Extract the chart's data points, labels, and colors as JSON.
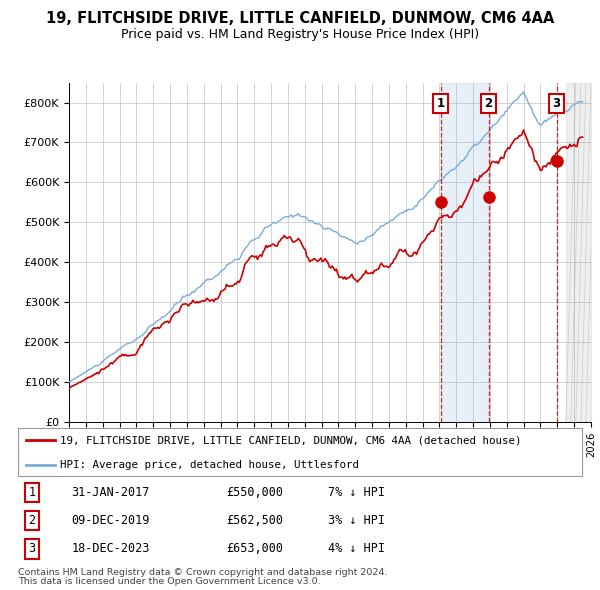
{
  "title": "19, FLITCHSIDE DRIVE, LITTLE CANFIELD, DUNMOW, CM6 4AA",
  "subtitle": "Price paid vs. HM Land Registry's House Price Index (HPI)",
  "ylabel_ticks": [
    "£0",
    "£100K",
    "£200K",
    "£300K",
    "£400K",
    "£500K",
    "£600K",
    "£700K",
    "£800K"
  ],
  "ytick_values": [
    0,
    100000,
    200000,
    300000,
    400000,
    500000,
    600000,
    700000,
    800000
  ],
  "ylim": [
    0,
    850000
  ],
  "xlim_start": 1995.5,
  "xlim_end": 2026.0,
  "hpi_color": "#7aacdc",
  "price_color": "#cc0000",
  "sale_dates": [
    2017.08,
    2019.92,
    2023.96
  ],
  "sale_prices": [
    550000,
    562500,
    653000
  ],
  "sale_labels": [
    "1",
    "2",
    "3"
  ],
  "vline_color": "#cc0000",
  "marker_box_color": "#cc0000",
  "blue_shade_start": 2017.08,
  "blue_shade_end": 2019.92,
  "future_shade_start": 2024.5,
  "legend_label_price": "19, FLITCHSIDE DRIVE, LITTLE CANFIELD, DUNMOW, CM6 4AA (detached house)",
  "legend_label_hpi": "HPI: Average price, detached house, Uttlesford",
  "table_entries": [
    {
      "num": "1",
      "date": "31-JAN-2017",
      "price": "£550,000",
      "pct": "7% ↓ HPI"
    },
    {
      "num": "2",
      "date": "09-DEC-2019",
      "price": "£562,500",
      "pct": "3% ↓ HPI"
    },
    {
      "num": "3",
      "date": "18-DEC-2023",
      "price": "£653,000",
      "pct": "4% ↓ HPI"
    }
  ],
  "footer1": "Contains HM Land Registry data © Crown copyright and database right 2024.",
  "footer2": "This data is licensed under the Open Government Licence v3.0.",
  "bg_color": "#ffffff",
  "grid_color": "#cccccc"
}
